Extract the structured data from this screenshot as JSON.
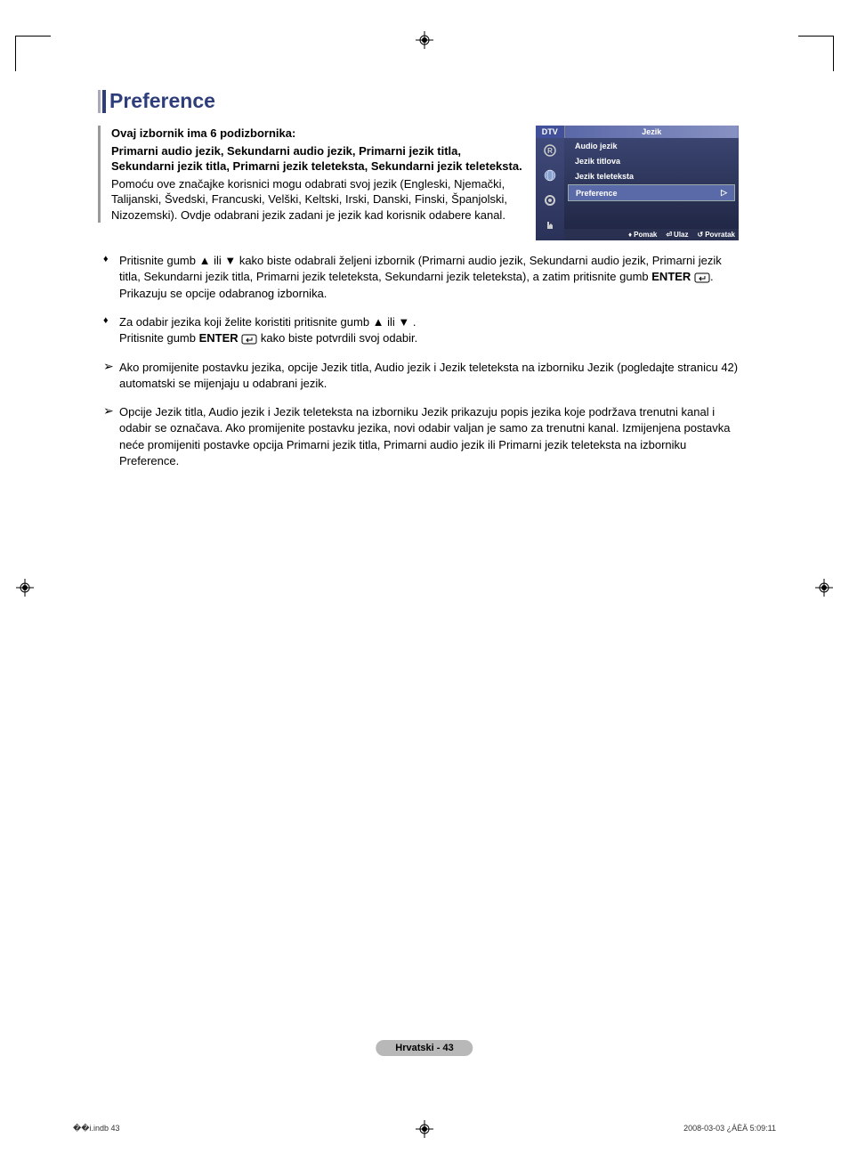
{
  "title": "Preference",
  "intro_bold_1": "Ovaj izbornik ima 6 podizbornika:",
  "intro_bold_2": "Primarni audio jezik, Sekundarni audio jezik, Primarni jezik titla, Sekundarni jezik titla, Primarni jezik teleteksta, Sekundarni jezik teleteksta.",
  "intro_reg": "Pomoću ove značajke korisnici mogu odabrati svoj jezik (Engleski, Njemački, Talijanski,  Švedski, Francuski, Velški, Keltski, Irski, Danski, Finski, Španjolski, Nizozemski). Ovdje odabrani jezik zadani je jezik kad korisnik odabere kanal.",
  "bullets": [
    {
      "mark": "♦",
      "pre": "Pritisnite gumb ▲ ili ▼ kako biste odabrali željeni izbornik (Primarni audio jezik, Sekundarni audio jezik, Primarni jezik titla, Sekundarni jezik titla, Primarni jezik teleteksta, Sekundarni jezik teleteksta), a zatim pritisnite gumb ",
      "bold": "ENTER",
      "icon": true,
      "post": ". Prikazuju se opcije odabranog izbornika."
    },
    {
      "mark": "♦",
      "pre": "Za odabir jezika koji želite koristiti pritisnite gumb ▲ ili ▼ .\nPritisnite gumb ",
      "bold": "ENTER",
      "icon": true,
      "post": " kako biste potvrdili svoj odabir."
    },
    {
      "mark": "➢",
      "pre": "Ako promijenite postavku jezika, opcije Jezik titla, Audio jezik i Jezik teleteksta na izborniku Jezik (pogledajte stranicu 42) automatski se mijenjaju u odabrani jezik.",
      "bold": "",
      "icon": false,
      "post": ""
    },
    {
      "mark": "➢",
      "pre": "Opcije Jezik titla, Audio jezik i Jezik teleteksta na izborniku Jezik prikazuju popis jezika koje podržava trenutni kanal i odabir se označava. Ako promijenite postavku jezika, novi odabir valjan je samo za trenutni kanal. Izmijenjena postavka neće promijeniti postavke opcija Primarni jezik titla, Primarni audio jezik ili Primarni jezik teleteksta na izborniku Preference.",
      "bold": "",
      "icon": false,
      "post": ""
    }
  ],
  "osd": {
    "dtv": "DTV",
    "header": "Jezik",
    "items": [
      "Audio jezik",
      "Jezik titlova",
      "Jezik teleteksta",
      "Preference"
    ],
    "selected_index": 3,
    "footer": [
      {
        "icon": "↕",
        "label": "Pomak"
      },
      {
        "icon": "⏎",
        "label": "Ulaz"
      },
      {
        "icon": "↺",
        "label": "Povratak"
      }
    ]
  },
  "page_label": "Hrvatski - 43",
  "footer_left": "��i.indb   43",
  "footer_right": "2008-03-03   ¿ÀÈÄ 5:09:11",
  "colors": {
    "title": "#2d3e7a",
    "osd_bg_top": "#425099",
    "osd_bg_bottom": "#1e2440",
    "page_badge": "#b8b8b8"
  }
}
